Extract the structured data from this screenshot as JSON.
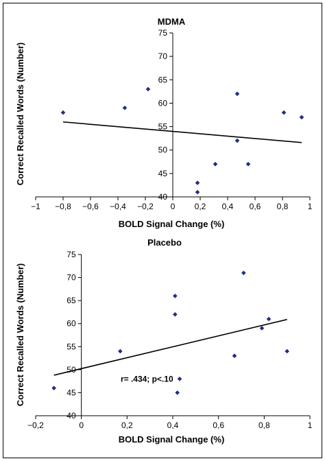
{
  "chart_data": [
    {
      "type": "scatter",
      "title": "MDMA",
      "xlabel": "BOLD Signal Change (%)",
      "ylabel": "Correct Recalled Words (Number)",
      "xlim": [
        -1,
        1
      ],
      "ylim": [
        40,
        75
      ],
      "xticks": [
        -1,
        -0.8,
        -0.6,
        -0.4,
        -0.2,
        0,
        0.2,
        0.4,
        0.6,
        0.8,
        1
      ],
      "xtick_labels": [
        "−1",
        "−0,8",
        "−0,6",
        "−0,4",
        "−0,2",
        "0",
        "0,2",
        "0,4",
        "0,6",
        "0,8",
        "1"
      ],
      "yticks": [
        40,
        45,
        50,
        55,
        60,
        65,
        70,
        75
      ],
      "ytick_labels": [
        "40",
        "45",
        "50",
        "55",
        "60",
        "65",
        "70",
        "75"
      ],
      "points": [
        {
          "x": -0.8,
          "y": 58
        },
        {
          "x": -0.35,
          "y": 59
        },
        {
          "x": -0.18,
          "y": 63
        },
        {
          "x": 0.18,
          "y": 43
        },
        {
          "x": 0.18,
          "y": 41
        },
        {
          "x": 0.31,
          "y": 47
        },
        {
          "x": 0.47,
          "y": 62
        },
        {
          "x": 0.47,
          "y": 52
        },
        {
          "x": 0.55,
          "y": 47
        },
        {
          "x": 0.81,
          "y": 58
        },
        {
          "x": 0.94,
          "y": 57
        }
      ],
      "trendline": [
        {
          "x": -0.8,
          "y": 56
        },
        {
          "x": 0.94,
          "y": 51.6
        }
      ],
      "marker_color": "#1f2d8a",
      "grid": false
    },
    {
      "type": "scatter",
      "title": "Placebo",
      "xlabel": "BOLD Signal Change (%)",
      "ylabel": "Correct Recalled Words (Number)",
      "xlim": [
        -0.2,
        1
      ],
      "ylim": [
        40,
        75
      ],
      "xticks": [
        -0.2,
        0,
        0.2,
        0.4,
        0.6,
        0.8,
        1
      ],
      "xtick_labels": [
        "−0,2",
        "0",
        "0,2",
        "0,4",
        "0,6",
        "0,8",
        "1"
      ],
      "yticks": [
        40,
        45,
        50,
        55,
        60,
        65,
        70,
        75
      ],
      "ytick_labels": [
        "40",
        "45",
        "50",
        "55",
        "60",
        "65",
        "70",
        "75"
      ],
      "points": [
        {
          "x": -0.12,
          "y": 46
        },
        {
          "x": 0.17,
          "y": 54
        },
        {
          "x": 0.41,
          "y": 66
        },
        {
          "x": 0.41,
          "y": 62
        },
        {
          "x": 0.43,
          "y": 48
        },
        {
          "x": 0.42,
          "y": 45
        },
        {
          "x": 0.67,
          "y": 53
        },
        {
          "x": 0.71,
          "y": 71
        },
        {
          "x": 0.79,
          "y": 59
        },
        {
          "x": 0.82,
          "y": 61
        },
        {
          "x": 0.9,
          "y": 54
        }
      ],
      "trendline": [
        {
          "x": -0.12,
          "y": 48.8
        },
        {
          "x": 0.9,
          "y": 60.9
        }
      ],
      "annotation": "r= .434; p<.10",
      "annotation_pos": {
        "x": 0.42,
        "y": 48
      },
      "marker_color": "#1f2d8a",
      "grid": false
    }
  ]
}
